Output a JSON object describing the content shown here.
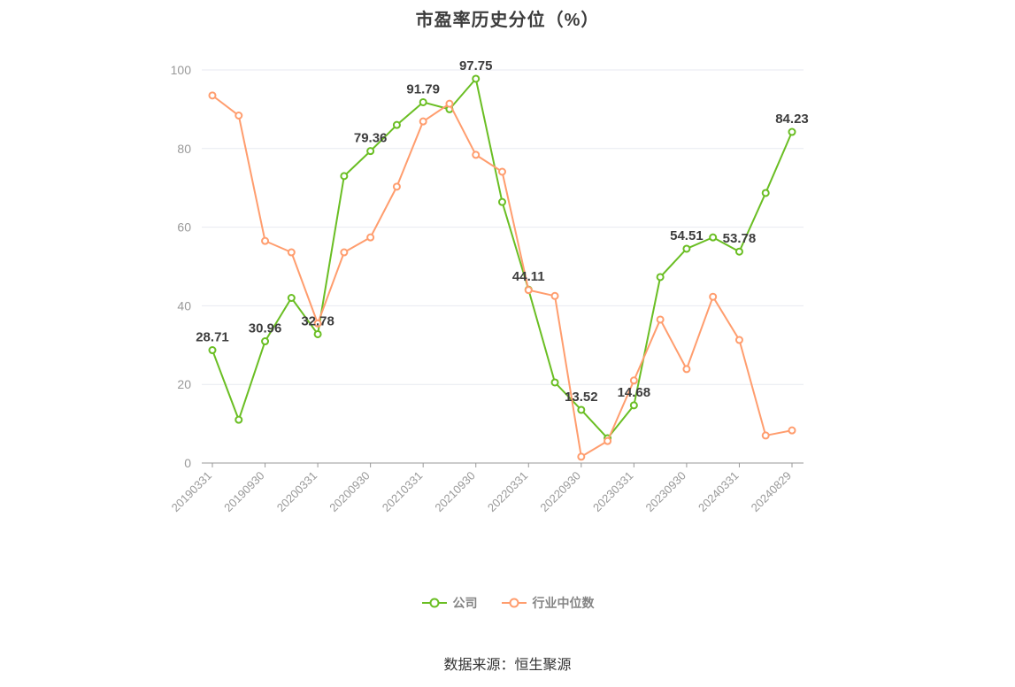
{
  "page": {
    "title": "市盈率历史分位（%）",
    "source": "数据来源：恒生聚源"
  },
  "chart_data": {
    "type": "line",
    "title": "市盈率历史分位（%）",
    "x": [
      "20190331",
      "20190630",
      "20190930",
      "20191231",
      "20200331",
      "20200630",
      "20200930",
      "20201231",
      "20210331",
      "20210630",
      "20210930",
      "20211231",
      "20220331",
      "20220630",
      "20220930",
      "20221231",
      "20230331",
      "20230630",
      "20230930",
      "20231231",
      "20240331",
      "20240630",
      "20240829"
    ],
    "x_tick_every": 2,
    "x_tick_labels_shown": [
      "20190331",
      "20190930",
      "20200331",
      "20200930",
      "20210331",
      "20210930",
      "20220331",
      "20220930",
      "20230331",
      "20230930",
      "20240331",
      "20240829"
    ],
    "y_ticks": [
      0,
      20,
      40,
      60,
      80,
      100
    ],
    "ylim": [
      0,
      100
    ],
    "grid": true,
    "legend_position": "bottom",
    "series": [
      {
        "name": "公司",
        "color": "#6abe23",
        "values": [
          28.71,
          11,
          30.96,
          42,
          32.78,
          73,
          79.36,
          86,
          91.79,
          90,
          97.75,
          66.4,
          44.11,
          20.5,
          13.52,
          6.3,
          14.68,
          47.3,
          54.51,
          57.4,
          53.78,
          68.7,
          84.23
        ]
      },
      {
        "name": "行业中位数",
        "color": "#ff9d6e",
        "values": [
          93.5,
          88.4,
          56.5,
          53.6,
          35.5,
          53.6,
          57.4,
          70.3,
          86.9,
          91.4,
          78.4,
          74.1,
          44,
          42.5,
          1.6,
          5.6,
          21,
          36.5,
          23.9,
          42.3,
          31.3,
          7,
          8.3
        ]
      }
    ],
    "data_labels": [
      {
        "x": "20190331",
        "text": "28.71"
      },
      {
        "x": "20190930",
        "text": "30.96"
      },
      {
        "x": "20200331",
        "text": "32.78"
      },
      {
        "x": "20200930",
        "text": "79.36"
      },
      {
        "x": "20210331",
        "text": "91.79"
      },
      {
        "x": "20210930",
        "text": "97.75"
      },
      {
        "x": "20220331",
        "text": "44.11"
      },
      {
        "x": "20220930",
        "text": "13.52"
      },
      {
        "x": "20230331",
        "text": "14.68"
      },
      {
        "x": "20230930",
        "text": "54.51"
      },
      {
        "x": "20240331",
        "text": "53.78"
      },
      {
        "x": "20240829",
        "text": "84.23"
      }
    ]
  }
}
